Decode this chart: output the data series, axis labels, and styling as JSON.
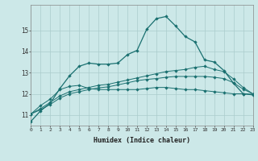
{
  "title": "",
  "xlabel": "Humidex (Indice chaleur)",
  "bg_color": "#cce8e8",
  "grid_color": "#aacccc",
  "line_color": "#1a7070",
  "x": [
    0,
    1,
    2,
    3,
    4,
    5,
    6,
    7,
    8,
    9,
    10,
    11,
    12,
    13,
    14,
    15,
    16,
    17,
    18,
    19,
    20,
    21,
    22,
    23
  ],
  "series1": [
    10.7,
    11.2,
    11.55,
    12.25,
    12.85,
    13.3,
    13.45,
    13.4,
    13.4,
    13.45,
    13.85,
    14.05,
    15.05,
    15.55,
    15.65,
    15.2,
    14.7,
    14.45,
    13.6,
    13.5,
    13.1,
    12.5,
    12.0,
    11.95
  ],
  "series2": [
    11.05,
    11.45,
    11.75,
    12.2,
    12.35,
    12.4,
    12.25,
    12.2,
    12.2,
    12.2,
    12.2,
    12.2,
    12.25,
    12.3,
    12.3,
    12.25,
    12.2,
    12.2,
    12.15,
    12.1,
    12.05,
    12.0,
    12.0,
    11.98
  ],
  "series3": [
    11.05,
    11.3,
    11.6,
    11.9,
    12.1,
    12.2,
    12.3,
    12.4,
    12.45,
    12.55,
    12.65,
    12.75,
    12.85,
    12.95,
    13.05,
    13.1,
    13.15,
    13.25,
    13.3,
    13.15,
    13.05,
    12.7,
    12.3,
    12.0
  ],
  "series4": [
    11.05,
    11.25,
    11.5,
    11.8,
    12.0,
    12.1,
    12.2,
    12.28,
    12.33,
    12.42,
    12.52,
    12.62,
    12.68,
    12.72,
    12.78,
    12.82,
    12.82,
    12.82,
    12.82,
    12.78,
    12.72,
    12.52,
    12.22,
    12.0
  ],
  "ylim_min": 10.5,
  "ylim_max": 16.2,
  "yticks": [
    11,
    12,
    13,
    14,
    15
  ],
  "xlim_min": 0,
  "xlim_max": 23
}
